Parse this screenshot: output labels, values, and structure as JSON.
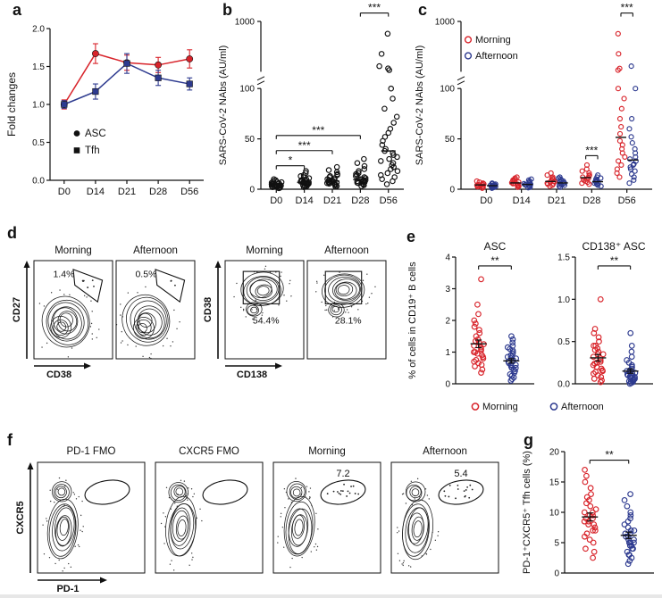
{
  "labels": {
    "a": "a",
    "b": "b",
    "c": "c",
    "d": "d",
    "e": "e",
    "f": "f",
    "g": "g"
  },
  "colors": {
    "morning_red": "#d8232a",
    "afternoon_blue": "#2d3a8f",
    "black": "#111111"
  },
  "chart_data": [
    {
      "id": "a",
      "type": "line",
      "ylabel": "Fold changes",
      "categories": [
        "D0",
        "D14",
        "D21",
        "D28",
        "D56"
      ],
      "ylim": [
        0,
        2
      ],
      "yticks": [
        "0.0",
        "0.5",
        "1.0",
        "1.5",
        "2.0"
      ],
      "series": [
        {
          "name": "ASC",
          "marker": "circle",
          "color": "#d8232a",
          "values": [
            1.0,
            1.67,
            1.55,
            1.52,
            1.6
          ],
          "errors": [
            0.06,
            0.13,
            0.1,
            0.1,
            0.12
          ]
        },
        {
          "name": "Tfh",
          "marker": "square",
          "color": "#2d3a8f",
          "values": [
            1.0,
            1.17,
            1.54,
            1.35,
            1.27
          ],
          "errors": [
            0.05,
            0.1,
            0.13,
            0.1,
            0.08
          ]
        }
      ]
    },
    {
      "id": "b",
      "type": "scatter",
      "ylabel": "SARS-CoV-2 NAbs (AU/ml)",
      "categories": [
        "D0",
        "D14",
        "D21",
        "D28",
        "D56"
      ],
      "ylim": [
        0,
        1000
      ],
      "broken_axis": {
        "lower": [
          0,
          100
        ],
        "upper": [
          100,
          1000
        ],
        "lower_ticks": [
          "0",
          "50",
          "100"
        ],
        "upper_ticks": [
          "1000"
        ]
      },
      "stat": "median",
      "groups": [
        {
          "label": "D0",
          "x": 0,
          "color": "#111111",
          "values": [
            1,
            1.5,
            2,
            2,
            2.5,
            3,
            3,
            3.5,
            4,
            4,
            4.5,
            5,
            5,
            5.5,
            6,
            6,
            6.5,
            7,
            7.5,
            8,
            9,
            10,
            2.5,
            3.5,
            4.5,
            5.5
          ]
        },
        {
          "label": "D14",
          "x": 1,
          "color": "#111111",
          "values": [
            2,
            2.5,
            3,
            3.5,
            4,
            4.5,
            5,
            5,
            5.5,
            6,
            6.5,
            7,
            7.5,
            8,
            8.5,
            9,
            10,
            11,
            12,
            13,
            14,
            16,
            18,
            5.5,
            6.5,
            7.5
          ]
        },
        {
          "label": "D21",
          "x": 2,
          "color": "#111111",
          "values": [
            2.5,
            3,
            4,
            4.5,
            5,
            5.5,
            6,
            6.5,
            7,
            7.5,
            8,
            9,
            9.5,
            10,
            11,
            12,
            13,
            14,
            15,
            17,
            19,
            22,
            6,
            7,
            8,
            9
          ]
        },
        {
          "label": "D28",
          "x": 3,
          "color": "#111111",
          "values": [
            3,
            4,
            5,
            5.5,
            6,
            6.5,
            7,
            8,
            8.5,
            9,
            10,
            11,
            12,
            13,
            14,
            15,
            16,
            18,
            20,
            23,
            26,
            30,
            7,
            8,
            9,
            10
          ]
        },
        {
          "label": "D56",
          "x": 4,
          "color": "#111111",
          "values": [
            5,
            8,
            10,
            12,
            14,
            16,
            18,
            20,
            22,
            24,
            26,
            28,
            30,
            32,
            34,
            36,
            38,
            40,
            44,
            48,
            52,
            56,
            60,
            66,
            72,
            80,
            90,
            100,
            130,
            160,
            200,
            420,
            780
          ]
        }
      ],
      "brackets": [
        {
          "x1": 0,
          "x2": 1,
          "yf": 0.86,
          "label": "*"
        },
        {
          "x1": 0,
          "x2": 2,
          "yf": 0.77,
          "label": "***"
        },
        {
          "x1": 0,
          "x2": 3,
          "yf": 0.68,
          "label": "***"
        },
        {
          "x1": 3,
          "x2": 4,
          "yf": -0.05,
          "label": "***"
        }
      ]
    },
    {
      "id": "c",
      "type": "scatter",
      "ylabel": "SARS-CoV-2 NAbs (AU/ml)",
      "categories": [
        "D0",
        "D14",
        "D21",
        "D28",
        "D56"
      ],
      "ylim": [
        0,
        1000
      ],
      "broken_axis": {
        "lower": [
          0,
          100
        ],
        "upper": [
          100,
          1000
        ],
        "lower_ticks": [
          "0",
          "50",
          "100"
        ],
        "upper_ticks": [
          "1000"
        ]
      },
      "stat": "median",
      "legend": [
        {
          "label": "Morning",
          "color": "#d8232a"
        },
        {
          "label": "Afternoon",
          "color": "#2d3a8f"
        }
      ],
      "groups": [
        {
          "label": "D0 Morning",
          "x": -0.17,
          "color": "#d8232a",
          "values": [
            1,
            2,
            2.5,
            3,
            3.5,
            4,
            4.5,
            5,
            5.5,
            6,
            7,
            8,
            3,
            4.5
          ]
        },
        {
          "label": "D0 Afternoon",
          "x": 0.17,
          "color": "#2d3a8f",
          "values": [
            1,
            1.5,
            2,
            2.5,
            3,
            3.5,
            4,
            4.5,
            5,
            5.5,
            6,
            2.5,
            3.5,
            4
          ]
        },
        {
          "label": "D14 Morning",
          "x": 0.83,
          "color": "#d8232a",
          "values": [
            2,
            3,
            3.5,
            4,
            5,
            5.5,
            6,
            7,
            8,
            9,
            10,
            11,
            12,
            6.5
          ]
        },
        {
          "label": "D14 Afternoon",
          "x": 1.17,
          "color": "#2d3a8f",
          "values": [
            1.5,
            2,
            3,
            3.5,
            4,
            4.5,
            5,
            6,
            7,
            8,
            9,
            10,
            4.5,
            5.5
          ]
        },
        {
          "label": "D21 Morning",
          "x": 1.83,
          "color": "#d8232a",
          "values": [
            3,
            4,
            5,
            5.5,
            6,
            7,
            8,
            9,
            10,
            11,
            12,
            14,
            16,
            7.5
          ]
        },
        {
          "label": "D21 Afternoon",
          "x": 2.17,
          "color": "#2d3a8f",
          "values": [
            2,
            3,
            4,
            4.5,
            5,
            6,
            7,
            8,
            9,
            10,
            11,
            12,
            5.5,
            6.5
          ]
        },
        {
          "label": "D28 Morning",
          "x": 2.83,
          "color": "#d8232a",
          "values": [
            5,
            6,
            7,
            8,
            9,
            10,
            11,
            12,
            13,
            14,
            16,
            18,
            20,
            24
          ]
        },
        {
          "label": "D28 Afternoon",
          "x": 3.17,
          "color": "#2d3a8f",
          "values": [
            3,
            4,
            5,
            6,
            6.5,
            7,
            8,
            9,
            10,
            11,
            12,
            14,
            5.5,
            8.5
          ]
        },
        {
          "label": "D56 Morning",
          "x": 3.83,
          "color": "#d8232a",
          "values": [
            12,
            16,
            20,
            24,
            28,
            32,
            36,
            40,
            44,
            48,
            55,
            62,
            70,
            80,
            90,
            100,
            130,
            160,
            420,
            780
          ]
        },
        {
          "label": "D56 Afternoon",
          "x": 4.17,
          "color": "#2d3a8f",
          "values": [
            6,
            9,
            12,
            15,
            18,
            20,
            22,
            25,
            28,
            32,
            36,
            40,
            46,
            52,
            60,
            70,
            100,
            200,
            24,
            30
          ]
        }
      ],
      "brackets": [
        {
          "x1": 2.83,
          "x2": 3.17,
          "yf": 0.8,
          "label": "***"
        },
        {
          "x1": 3.83,
          "x2": 4.17,
          "yf": -0.05,
          "label": "***"
        }
      ]
    },
    {
      "id": "e1",
      "type": "scatter",
      "title": "ASC",
      "ylabel": "% of cells in CD19⁺ B cells",
      "ylim": [
        0,
        4
      ],
      "yticks": [
        "0",
        "1",
        "2",
        "3",
        "4"
      ],
      "stat": "mean",
      "groups": [
        {
          "label": "Morning",
          "x": 0,
          "color": "#d8232a",
          "values": [
            0.35,
            0.45,
            0.55,
            0.6,
            0.65,
            0.7,
            0.75,
            0.8,
            0.85,
            0.9,
            0.95,
            1.0,
            1.0,
            1.05,
            1.1,
            1.15,
            1.2,
            1.25,
            1.3,
            1.35,
            1.4,
            1.5,
            1.6,
            1.7,
            1.8,
            1.9,
            2.0,
            2.2,
            2.5,
            3.3
          ]
        },
        {
          "label": "Afternoon",
          "x": 1,
          "color": "#2d3a8f",
          "values": [
            0.1,
            0.15,
            0.2,
            0.25,
            0.3,
            0.35,
            0.4,
            0.45,
            0.5,
            0.5,
            0.55,
            0.6,
            0.6,
            0.65,
            0.7,
            0.7,
            0.75,
            0.8,
            0.8,
            0.85,
            0.9,
            0.95,
            1.0,
            1.05,
            1.1,
            1.15,
            1.2,
            1.3,
            1.4,
            1.5
          ]
        }
      ],
      "brackets": [
        {
          "x1": 0,
          "x2": 1,
          "yf": 0.07,
          "label": "**"
        }
      ],
      "legend_bottom": [
        {
          "label": "Morning",
          "color": "#d8232a"
        },
        {
          "label": "Afternoon",
          "color": "#2d3a8f"
        }
      ]
    },
    {
      "id": "e2",
      "type": "scatter",
      "title": "CD138⁺ ASC",
      "ylim": [
        0,
        1.5
      ],
      "yticks": [
        "0.0",
        "0.5",
        "1.0",
        "1.5"
      ],
      "stat": "mean",
      "groups": [
        {
          "label": "Morning",
          "x": 0,
          "color": "#d8232a",
          "values": [
            0.02,
            0.04,
            0.06,
            0.08,
            0.1,
            0.12,
            0.14,
            0.15,
            0.16,
            0.18,
            0.2,
            0.22,
            0.24,
            0.26,
            0.28,
            0.3,
            0.32,
            0.35,
            0.38,
            0.4,
            0.42,
            0.45,
            0.5,
            0.55,
            0.6,
            0.65,
            0.45,
            0.35,
            0.25,
            1.0
          ]
        },
        {
          "label": "Afternoon",
          "x": 1,
          "color": "#2d3a8f",
          "values": [
            0.0,
            0.01,
            0.02,
            0.03,
            0.03,
            0.04,
            0.05,
            0.05,
            0.06,
            0.07,
            0.08,
            0.08,
            0.09,
            0.1,
            0.1,
            0.11,
            0.12,
            0.13,
            0.14,
            0.15,
            0.16,
            0.18,
            0.2,
            0.22,
            0.25,
            0.28,
            0.32,
            0.38,
            0.45,
            0.6
          ]
        }
      ],
      "brackets": [
        {
          "x1": 0,
          "x2": 1,
          "yf": 0.07,
          "label": "**"
        }
      ]
    },
    {
      "id": "g",
      "type": "scatter",
      "ylabel": "PD-1⁺CXCR5⁺ Tfh cells (%)",
      "ylim": [
        0,
        20
      ],
      "yticks": [
        "0",
        "5",
        "10",
        "15",
        "20"
      ],
      "stat": "mean",
      "groups": [
        {
          "label": "Morning",
          "x": 0,
          "color": "#d8232a",
          "values": [
            2.5,
            3.5,
            4,
            5,
            5.5,
            6,
            6.5,
            7,
            7.5,
            8,
            8,
            8.5,
            9,
            9,
            9.5,
            10,
            10,
            10.5,
            11,
            11.5,
            12,
            12.5,
            13,
            14,
            15,
            16,
            17,
            9.5,
            8.5,
            7
          ]
        },
        {
          "label": "Afternoon",
          "x": 1,
          "color": "#2d3a8f",
          "values": [
            1.5,
            2,
            2.5,
            3,
            3.5,
            4,
            4,
            4.5,
            5,
            5,
            5.5,
            5.5,
            6,
            6,
            6.5,
            6.5,
            7,
            7,
            7.5,
            8,
            8.5,
            9,
            9.5,
            10,
            11,
            12,
            13,
            4.5,
            5,
            3
          ]
        }
      ],
      "brackets": [
        {
          "x1": 0,
          "x2": 1,
          "yf": 0.07,
          "label": "**"
        }
      ]
    }
  ],
  "flow_data": [
    {
      "id": "d1",
      "xlabel": "CD38",
      "ylabel": "CD27",
      "style": "corner-gate",
      "plots": [
        {
          "title": "Morning",
          "pct": "1.4%"
        },
        {
          "title": "Afternoon",
          "pct": "0.5%"
        }
      ]
    },
    {
      "id": "d2",
      "xlabel": "CD138",
      "ylabel": "CD38",
      "style": "box-gate",
      "plots": [
        {
          "title": "Morning",
          "pct": "54.4%"
        },
        {
          "title": "Afternoon",
          "pct": "28.1%"
        }
      ]
    },
    {
      "id": "f",
      "xlabel": "PD-1",
      "ylabel": "CXCR5",
      "style": "ellipse-gate",
      "plots": [
        {
          "title": "PD-1 FMO",
          "pct": ""
        },
        {
          "title": "CXCR5 FMO",
          "pct": ""
        },
        {
          "title": "Morning",
          "pct": "7.2"
        },
        {
          "title": "Afternoon",
          "pct": "5.4"
        }
      ]
    }
  ]
}
